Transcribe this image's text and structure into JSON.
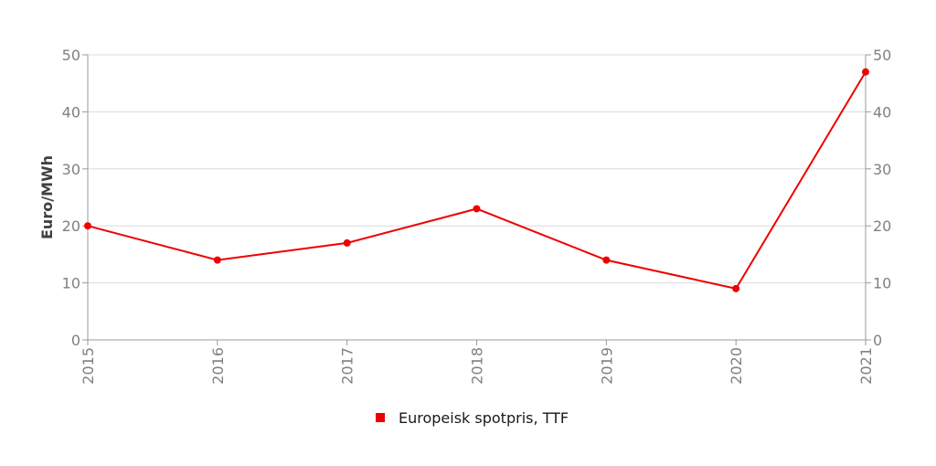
{
  "chart_data": {
    "type": "line",
    "title": "",
    "xlabel": "",
    "ylabel": "Euro/MWh",
    "categories": [
      "2015",
      "2016",
      "2017",
      "2018",
      "2019",
      "2020",
      "2021"
    ],
    "ylim": [
      0,
      50
    ],
    "yticks": [
      0,
      10,
      20,
      30,
      40,
      50
    ],
    "y2ticks": [
      0,
      10,
      20,
      30,
      40,
      50
    ],
    "grid": true,
    "legend_position": "bottom-center",
    "series": [
      {
        "name": "Europeisk spotpris, TTF",
        "color": "#ee0000",
        "values": [
          20,
          14,
          17,
          23,
          14,
          9,
          47
        ]
      }
    ]
  }
}
